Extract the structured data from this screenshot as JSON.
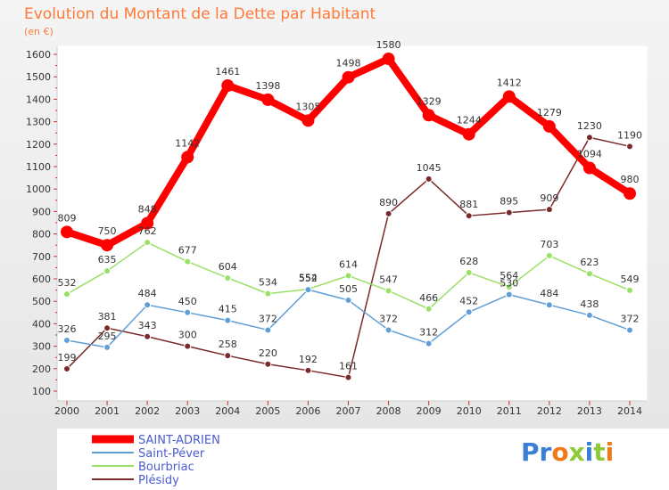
{
  "chart_data": {
    "type": "line",
    "title": "Evolution du Montant de la Dette par Habitant",
    "subtitle": "(en €)",
    "x": [
      2000,
      2001,
      2002,
      2003,
      2004,
      2005,
      2006,
      2007,
      2008,
      2009,
      2010,
      2011,
      2012,
      2013,
      2014
    ],
    "ylim": [
      100,
      1600
    ],
    "yticks": [
      100,
      200,
      300,
      400,
      500,
      600,
      700,
      800,
      900,
      1000,
      1100,
      1200,
      1300,
      1400,
      1500,
      1600
    ],
    "grid": false,
    "legend_position": "bottom-left",
    "series": [
      {
        "name": "SAINT-ADRIEN",
        "color": "#ff0000",
        "values": [
          809,
          750,
          848,
          1142,
          1461,
          1398,
          1305,
          1498,
          1580,
          1329,
          1244,
          1412,
          1279,
          1094,
          980
        ]
      },
      {
        "name": "Saint-Péver",
        "color": "#5f9fd6",
        "values": [
          326,
          295,
          484,
          450,
          415,
          372,
          552,
          505,
          372,
          312,
          452,
          530,
          484,
          438,
          372
        ]
      },
      {
        "name": "Bourbriac",
        "color": "#99e066",
        "values": [
          532,
          635,
          762,
          677,
          604,
          534,
          554,
          614,
          547,
          466,
          628,
          564,
          703,
          623,
          549
        ]
      },
      {
        "name": "Plésidy",
        "color": "#7a2a2a",
        "values": [
          199,
          381,
          343,
          300,
          258,
          220,
          192,
          161,
          890,
          1045,
          881,
          895,
          909,
          1230,
          1190
        ]
      }
    ]
  },
  "branding": {
    "logo": "Proxiti"
  }
}
